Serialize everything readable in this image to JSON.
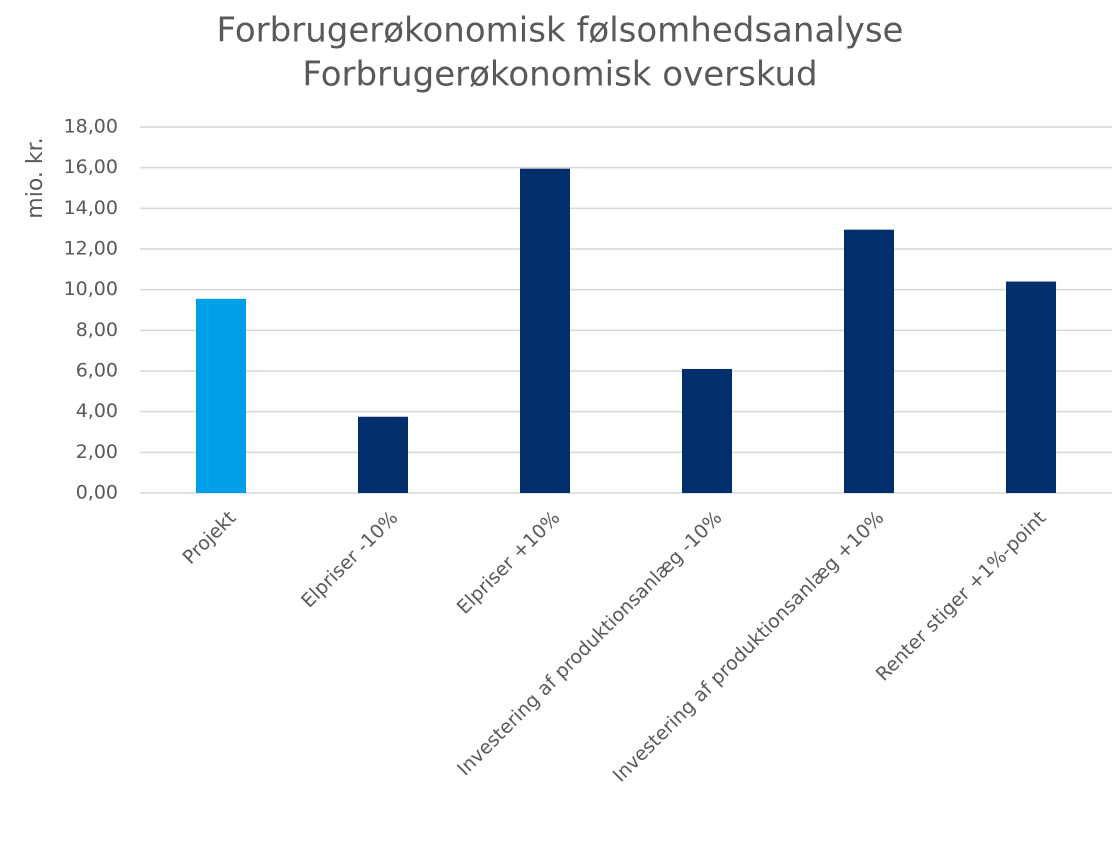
{
  "chart_data": {
    "type": "bar",
    "title": "Forbrugerøkonomisk følsomhedsanalyse",
    "subtitle": "Forbrugerøkonomisk overskud",
    "y_label": "mio. kr.",
    "categories": [
      "Projekt",
      "Elpriser -10%",
      "Elpriser +10%",
      "Investering af produktionsanlæg -10%",
      "Investering af produktionsanlæg +10%",
      "Renter stiger +1%-point"
    ],
    "values": [
      9.55,
      3.75,
      15.95,
      6.1,
      12.95,
      10.4
    ],
    "colors": [
      "#00a0e9",
      "#002f6c",
      "#002f6c",
      "#002f6c",
      "#002f6c",
      "#002f6c"
    ],
    "ylim": [
      0,
      18
    ],
    "yticks": [
      {
        "value": 0,
        "label": "0,00"
      },
      {
        "value": 2,
        "label": "2,00"
      },
      {
        "value": 4,
        "label": "4,00"
      },
      {
        "value": 6,
        "label": "6,00"
      },
      {
        "value": 8,
        "label": "8,00"
      },
      {
        "value": 10,
        "label": "10,00"
      },
      {
        "value": 12,
        "label": "12,00"
      },
      {
        "value": 14,
        "label": "14,00"
      },
      {
        "value": 16,
        "label": "16,00"
      },
      {
        "value": 18,
        "label": "18,00"
      }
    ],
    "grid": true
  }
}
